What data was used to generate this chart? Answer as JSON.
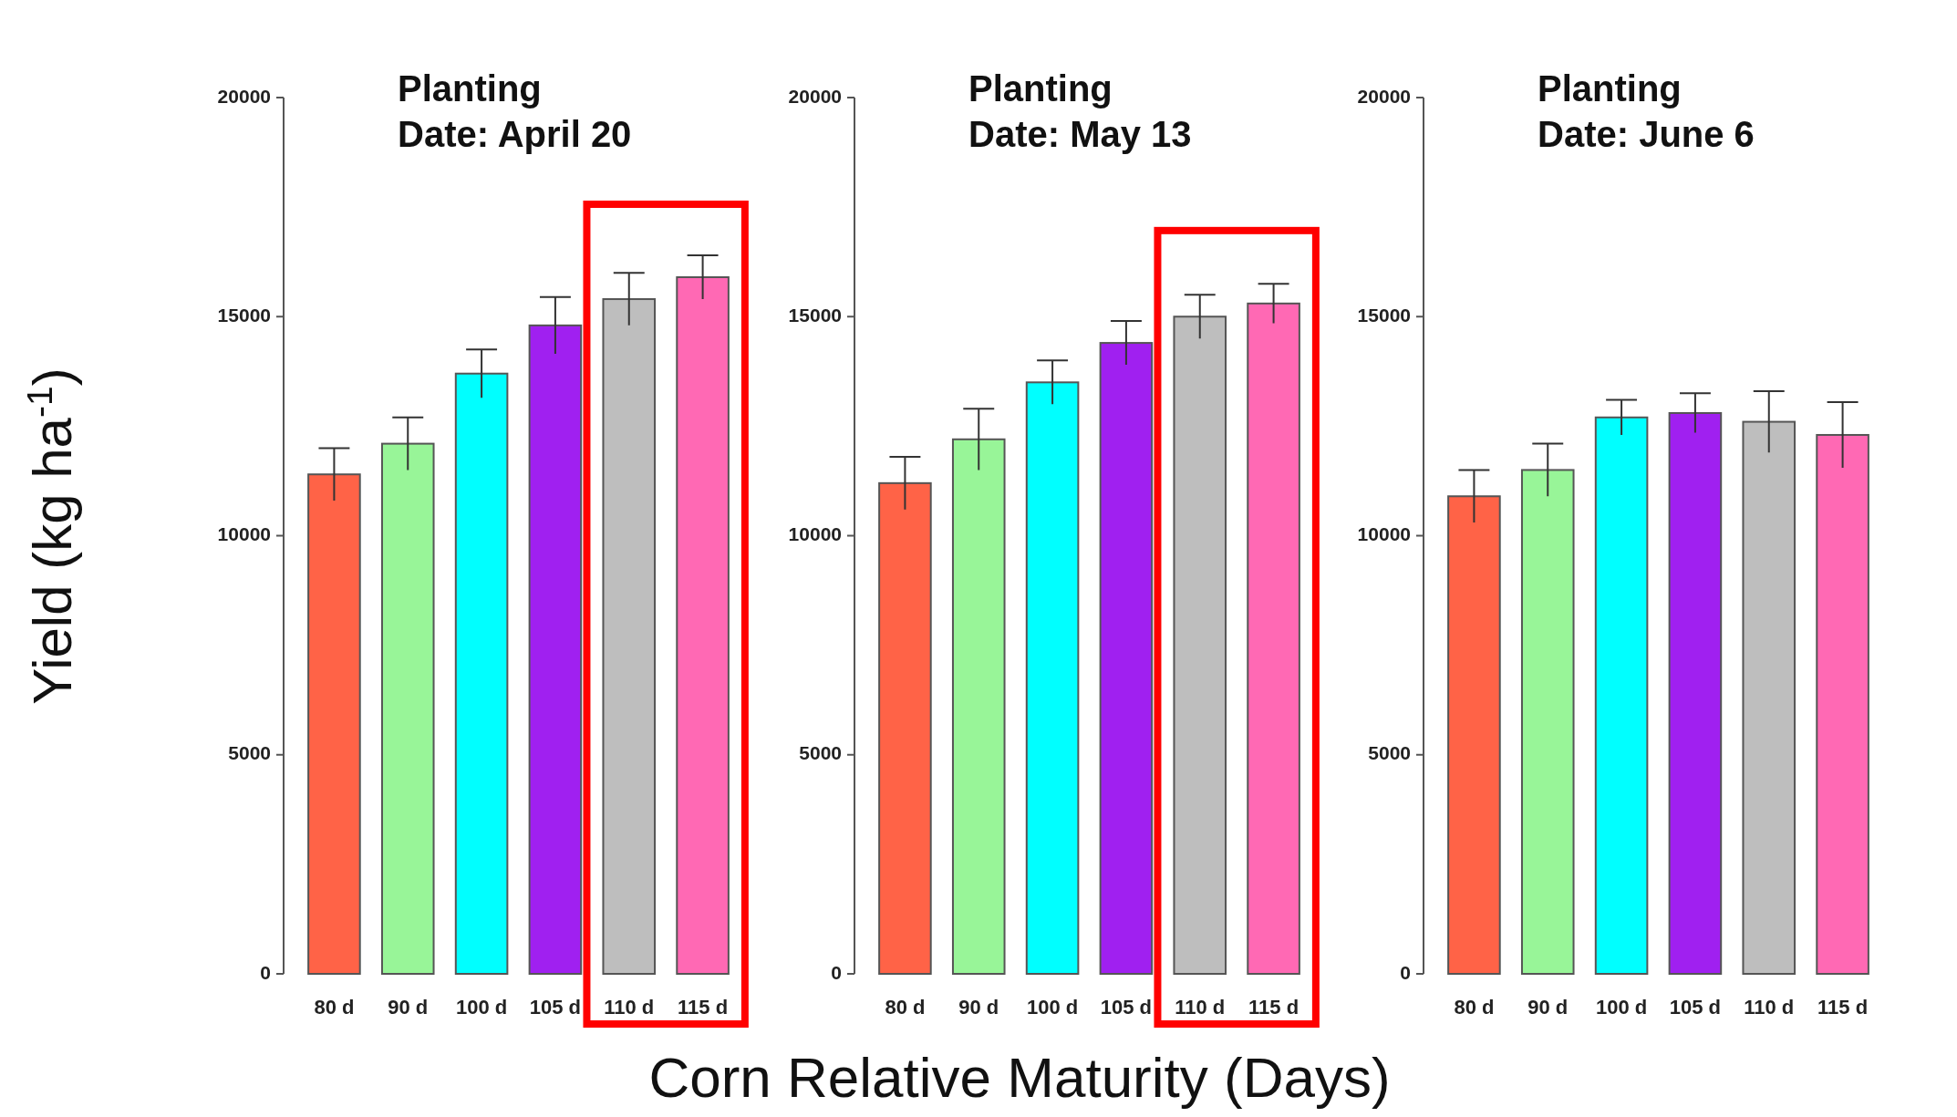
{
  "chart_data": [
    {
      "type": "bar",
      "title": "Planting\nDate: April 20",
      "ylabel": "Yield (kg ha$^{-1}$)",
      "categories": [
        "80 d",
        "90 d",
        "100 d",
        "105 d",
        "110 d",
        "115 d"
      ],
      "values": [
        11400,
        12100,
        13700,
        14800,
        15400,
        15900
      ],
      "errors": [
        600,
        600,
        550,
        650,
        600,
        500
      ],
      "colors": [
        "#ff6347",
        "#98f598",
        "#00ffff",
        "#a020f0",
        "#bebebe",
        "#ff69b4"
      ],
      "ylim": [
        0,
        20000
      ],
      "yticks": [
        0,
        5000,
        10000,
        15000,
        20000
      ]
    },
    {
      "type": "bar",
      "title": "Planting\nDate: May 13",
      "xlabel": "Corn Relative Maturity (Days)",
      "categories": [
        "80 d",
        "90 d",
        "100 d",
        "105 d",
        "110 d",
        "115 d"
      ],
      "values": [
        11200,
        12200,
        13500,
        14400,
        15000,
        15300
      ],
      "errors": [
        600,
        700,
        500,
        500,
        500,
        450
      ],
      "colors": [
        "#ff6347",
        "#98f598",
        "#00ffff",
        "#a020f0",
        "#bebebe",
        "#ff69b4"
      ],
      "ylim": [
        0,
        20000
      ],
      "yticks": [
        0,
        5000,
        10000,
        15000,
        20000
      ]
    },
    {
      "type": "bar",
      "title": "Planting\nDate: June 6",
      "categories": [
        "80 d",
        "90 d",
        "100 d",
        "105 d",
        "110 d",
        "115 d"
      ],
      "values": [
        10900,
        11500,
        12700,
        12800,
        12600,
        12300
      ],
      "errors": [
        600,
        600,
        400,
        450,
        700,
        750
      ],
      "colors": [
        "#ff6347",
        "#98f598",
        "#00ffff",
        "#a020f0",
        "#bebebe",
        "#ff69b4"
      ],
      "ylim": [
        0,
        20000
      ],
      "yticks": [
        0,
        5000,
        10000,
        15000,
        20000
      ]
    }
  ]
}
